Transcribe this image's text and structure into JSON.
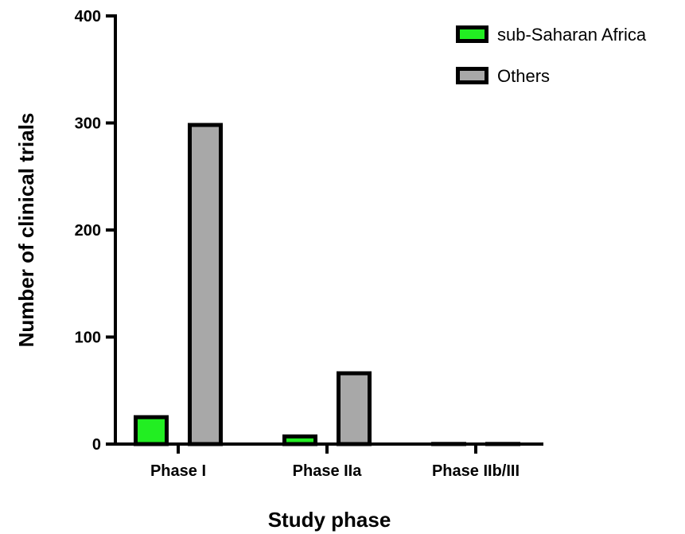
{
  "chart_data": {
    "type": "bar",
    "title": "",
    "xlabel": "Study phase",
    "ylabel": "Number of clinical trials",
    "categories": [
      "Phase I",
      "Phase IIa",
      "Phase IIb/III"
    ],
    "series": [
      {
        "name": "sub-Saharan Africa",
        "values": [
          27,
          9,
          2
        ],
        "color": "#22ee22"
      },
      {
        "name": "Others",
        "values": [
          300,
          68,
          2
        ],
        "color": "#a8a8a8"
      }
    ],
    "ylim": [
      0,
      400
    ],
    "yticks": [
      0,
      100,
      200,
      300,
      400
    ],
    "grid": false,
    "legend_position": "top-right",
    "bar_outline_color": "#000000"
  }
}
